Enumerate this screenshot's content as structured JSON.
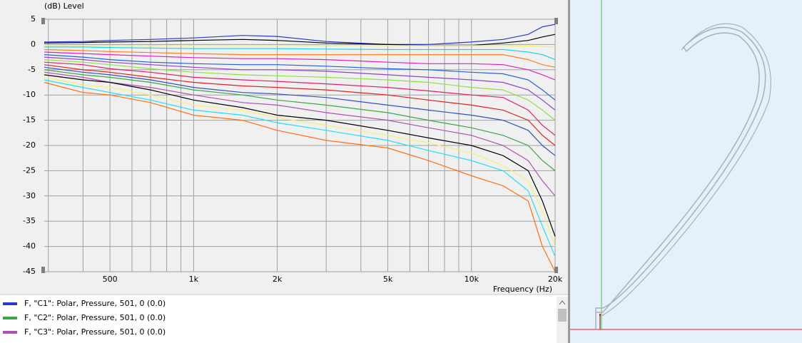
{
  "chart_data": {
    "type": "line",
    "ylabel": "(dB)  Level",
    "xlabel": "Frequency  (Hz)",
    "log_x": true,
    "grid": true,
    "xlim": [
      290,
      20000
    ],
    "ylim": [
      -45,
      5
    ],
    "xticks": [
      500,
      {
        "value": 1000,
        "label": "1k"
      },
      {
        "value": 2000,
        "label": "2k"
      },
      {
        "value": 5000,
        "label": "5k"
      },
      {
        "value": 10000,
        "label": "10k"
      },
      {
        "value": 20000,
        "label": "20k"
      }
    ],
    "xminor": [
      300,
      400,
      600,
      700,
      800,
      900,
      3000,
      4000,
      6000,
      7000,
      8000,
      9000
    ],
    "yticks": [
      5,
      0,
      -5,
      -10,
      -15,
      -20,
      -25,
      -30,
      -35,
      -40,
      -45
    ],
    "x": [
      290,
      400,
      500,
      700,
      1000,
      1500,
      2000,
      3000,
      5000,
      7000,
      10000,
      13000,
      16000,
      18000,
      20000
    ],
    "series": [
      {
        "name": "F, \"C1\": Polar, Pressure, 501, 0 (0.0)",
        "color": "#2b3bd0",
        "values": [
          0.5,
          0.6,
          0.8,
          1,
          1.3,
          1.8,
          1.6,
          0.6,
          0,
          0,
          0.5,
          1,
          2,
          3.5,
          4
        ]
      },
      {
        "name": "F, \"C2\": Polar, Pressure, 501, 0 (0.0)",
        "color": "#3aa648",
        "values": [
          -5,
          -6,
          -6.5,
          -7.5,
          -9,
          -10,
          -11,
          -12,
          -13.5,
          -15,
          -16.5,
          -18,
          -20,
          -23,
          -25
        ]
      },
      {
        "name": "F, \"C3\": Polar, Pressure, 501, 0 (0.0)",
        "color": "#b050b0",
        "values": [
          -5.5,
          -6.5,
          -7.5,
          -8.5,
          -10,
          -11.5,
          -12,
          -13.5,
          -15,
          -16.5,
          -18,
          -20,
          -23,
          -27,
          -30
        ]
      },
      {
        "color": "#000000",
        "values": [
          0.3,
          0.4,
          0.5,
          0.6,
          0.8,
          1,
          0.8,
          0.3,
          0,
          -0.2,
          -0.2,
          0.3,
          0.8,
          1.5,
          2
        ]
      },
      {
        "color": "#f0f060",
        "values": [
          -0.2,
          -0.2,
          -0.2,
          -0.2,
          -0.2,
          -0.2,
          -0.2,
          -0.2,
          -0.2,
          -0.2,
          -0.2,
          -0.2,
          -0.3,
          -0.4,
          -0.5
        ]
      },
      {
        "color": "#20d8e8",
        "values": [
          -0.5,
          -0.5,
          -0.6,
          -0.7,
          -0.8,
          -0.8,
          -0.8,
          -0.9,
          -1,
          -1,
          -1,
          -1,
          -1.5,
          -2,
          -3
        ]
      },
      {
        "color": "#ff8020",
        "values": [
          -1,
          -1.2,
          -1.4,
          -1.6,
          -1.8,
          -2,
          -2,
          -2,
          -2,
          -2,
          -2,
          -2,
          -3,
          -4,
          -4.5
        ]
      },
      {
        "color": "#e020c0",
        "values": [
          -1.5,
          -1.8,
          -2,
          -2.3,
          -2.6,
          -2.8,
          -2.8,
          -3,
          -3.5,
          -3.8,
          -3.8,
          -4,
          -5,
          -6,
          -7
        ]
      },
      {
        "color": "#2060e0",
        "values": [
          -2,
          -2.5,
          -3,
          -3.5,
          -3.8,
          -4,
          -4,
          -4.3,
          -4.8,
          -5,
          -5.5,
          -5.8,
          -7,
          -9,
          -11
        ]
      },
      {
        "color": "#9040d0",
        "values": [
          -2.5,
          -3,
          -3.5,
          -4,
          -4.5,
          -5,
          -5,
          -5.3,
          -6,
          -6.5,
          -7,
          -7.5,
          -9,
          -11,
          -13
        ]
      },
      {
        "color": "#90e040",
        "values": [
          -3,
          -3.5,
          -4,
          -4.8,
          -5.5,
          -6,
          -6.2,
          -6.5,
          -7,
          -7.5,
          -8.5,
          -9,
          -11,
          -13,
          -15
        ]
      },
      {
        "color": "#e0206a",
        "values": [
          -3.5,
          -4,
          -4.8,
          -5.5,
          -6.5,
          -7,
          -7.3,
          -7.8,
          -8.5,
          -9.2,
          -10,
          -10.5,
          -13,
          -16,
          -18
        ]
      },
      {
        "color": "#e02020",
        "values": [
          -4,
          -5,
          -5.5,
          -6.5,
          -7.5,
          -8.2,
          -8.5,
          -9,
          -10,
          -11,
          -12,
          -13,
          -15,
          -18,
          -20
        ]
      },
      {
        "color": "#3050c0",
        "values": [
          -4.5,
          -5.5,
          -6,
          -7,
          -8.5,
          -9.5,
          -9.8,
          -10.5,
          -12,
          -13,
          -14,
          -15,
          -17,
          -20,
          -22
        ]
      },
      {
        "color": "#000000",
        "values": [
          -6,
          -7,
          -7.5,
          -9,
          -11,
          -12.5,
          -14,
          -15,
          -17,
          -18.5,
          -20,
          -22,
          -25,
          -31,
          -38
        ]
      },
      {
        "color": "#f8f070",
        "values": [
          -6.5,
          -8,
          -8.5,
          -10,
          -12,
          -13,
          -14.5,
          -16,
          -18,
          -19.5,
          -21.5,
          -24,
          -27,
          -33,
          -40
        ]
      },
      {
        "color": "#20e0f0",
        "values": [
          -7,
          -8.5,
          -9.5,
          -11,
          -13,
          -14,
          -15.5,
          -17,
          -19,
          -21,
          -23,
          -25,
          -29,
          -36,
          -42
        ]
      },
      {
        "color": "#ff7010",
        "values": [
          -7.5,
          -9.5,
          -10,
          -11.5,
          -14,
          -15,
          -17,
          -19,
          -20.5,
          -23,
          -26,
          -28,
          -31,
          -40,
          -45
        ]
      }
    ]
  }
}
